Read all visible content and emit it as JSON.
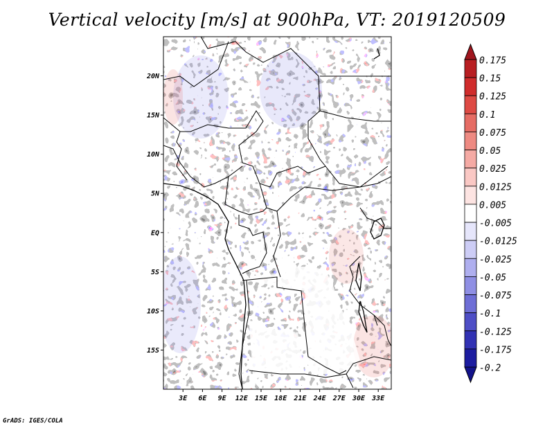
{
  "title": "Vertical velocity [m/s] at 900hPa, VT: 2019120509",
  "footer": "GrADS: IGES/COLA",
  "map": {
    "lat_labels": [
      "20N",
      "15N",
      "10N",
      "5N",
      "EQ",
      "5S",
      "10S",
      "15S"
    ],
    "lon_labels": [
      "3E",
      "6E",
      "9E",
      "12E",
      "15E",
      "18E",
      "21E",
      "24E",
      "27E",
      "30E",
      "33E"
    ],
    "lon_range": [
      0,
      35
    ],
    "lat_range": [
      -20,
      25
    ]
  },
  "colorbar": {
    "levels": [
      "0.175",
      "0.15",
      "0.125",
      "0.1",
      "0.075",
      "0.05",
      "0.025",
      "0.0125",
      "0.005",
      "-0.005",
      "-0.0125",
      "-0.025",
      "-0.05",
      "-0.075",
      "-0.1",
      "-0.125",
      "-0.175",
      "-0.2"
    ],
    "colors": [
      "#a0161e",
      "#b81e22",
      "#d02c2c",
      "#de4a44",
      "#e66c64",
      "#ee8a82",
      "#f5aaa4",
      "#fac8c4",
      "#fde4e2",
      "#ffffff",
      "#e6e6fb",
      "#cdcdf6",
      "#afafef",
      "#8f8fe4",
      "#6e6ed6",
      "#4e4ec6",
      "#3232b4",
      "#1c1ca0",
      "#12128a"
    ],
    "top_color": "#a0161e",
    "bottom_color": "#12128a"
  },
  "colors": {
    "positive": "#e8605a",
    "negative": "#6a6ae8",
    "border": "#000000"
  }
}
